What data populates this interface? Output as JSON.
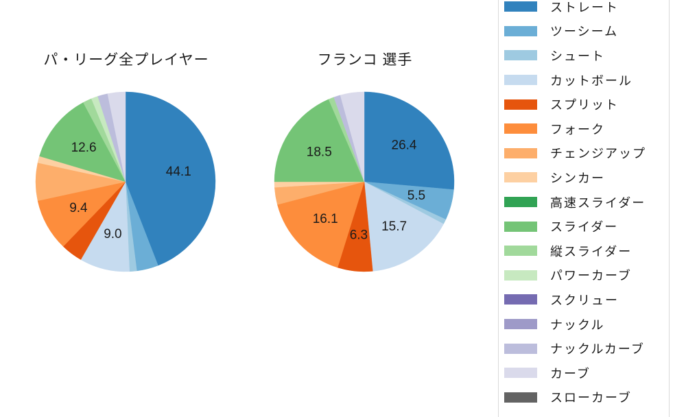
{
  "background_color": "#ffffff",
  "text_color": "#1a1a1a",
  "legend_border_color": "#d9d9d9",
  "legend": {
    "position": "right-column",
    "items": [
      {
        "label": "ストレート",
        "color": "#3182bd"
      },
      {
        "label": "ツーシーム",
        "color": "#6baed6"
      },
      {
        "label": "シュート",
        "color": "#9ecae1"
      },
      {
        "label": "カットボール",
        "color": "#c6dbef"
      },
      {
        "label": "スプリット",
        "color": "#e6550d"
      },
      {
        "label": "フォーク",
        "color": "#fd8d3c"
      },
      {
        "label": "チェンジアップ",
        "color": "#fdae6b"
      },
      {
        "label": "シンカー",
        "color": "#fdd0a2"
      },
      {
        "label": "高速スライダー",
        "color": "#31a354"
      },
      {
        "label": "スライダー",
        "color": "#74c476"
      },
      {
        "label": "縦スライダー",
        "color": "#a1d99b"
      },
      {
        "label": "パワーカーブ",
        "color": "#c7e9c0"
      },
      {
        "label": "スクリュー",
        "color": "#756bb1"
      },
      {
        "label": "ナックル",
        "color": "#9e9ac8"
      },
      {
        "label": "ナックルカーブ",
        "color": "#bcbddc"
      },
      {
        "label": "カーブ",
        "color": "#dadaeb"
      },
      {
        "label": "スローカーブ",
        "color": "#636363"
      }
    ]
  },
  "chart_data": [
    {
      "type": "pie",
      "title": "パ・リーグ全プレイヤー",
      "units": "percent",
      "start_angle": "12-o-clock",
      "direction": "clockwise",
      "label_distance": 0.6,
      "slices": [
        {
          "category": "ストレート",
          "value": 44.1,
          "label": "44.1"
        },
        {
          "category": "ツーシーム",
          "value": 3.9,
          "label": null
        },
        {
          "category": "シュート",
          "value": 1.3,
          "label": null
        },
        {
          "category": "カットボール",
          "value": 9.0,
          "label": "9.0"
        },
        {
          "category": "スプリット",
          "value": 3.9,
          "label": null
        },
        {
          "category": "フォーク",
          "value": 9.4,
          "label": "9.4"
        },
        {
          "category": "チェンジアップ",
          "value": 6.8,
          "label": null
        },
        {
          "category": "シンカー",
          "value": 1.2,
          "label": null
        },
        {
          "category": "スライダー",
          "value": 12.6,
          "label": "12.6"
        },
        {
          "category": "縦スライダー",
          "value": 1.6,
          "label": null
        },
        {
          "category": "パワーカーブ",
          "value": 1.2,
          "label": null
        },
        {
          "category": "ナックルカーブ",
          "value": 1.8,
          "label": null
        },
        {
          "category": "カーブ",
          "value": 3.2,
          "label": null
        }
      ]
    },
    {
      "type": "pie",
      "title": "フランコ 選手",
      "units": "percent",
      "start_angle": "12-o-clock",
      "direction": "clockwise",
      "label_distance": 0.6,
      "slices": [
        {
          "category": "ストレート",
          "value": 26.4,
          "label": "26.4"
        },
        {
          "category": "ツーシーム",
          "value": 5.5,
          "label": "5.5"
        },
        {
          "category": "シュート",
          "value": 0.9,
          "label": null
        },
        {
          "category": "カットボール",
          "value": 15.7,
          "label": "15.7"
        },
        {
          "category": "スプリット",
          "value": 6.3,
          "label": "6.3"
        },
        {
          "category": "フォーク",
          "value": 16.1,
          "label": "16.1"
        },
        {
          "category": "チェンジアップ",
          "value": 3.1,
          "label": null
        },
        {
          "category": "シンカー",
          "value": 1.0,
          "label": null
        },
        {
          "category": "スライダー",
          "value": 18.5,
          "label": "18.5"
        },
        {
          "category": "縦スライダー",
          "value": 1.0,
          "label": null
        },
        {
          "category": "ナックルカーブ",
          "value": 1.2,
          "label": null
        },
        {
          "category": "カーブ",
          "value": 4.3,
          "label": null
        }
      ]
    }
  ]
}
